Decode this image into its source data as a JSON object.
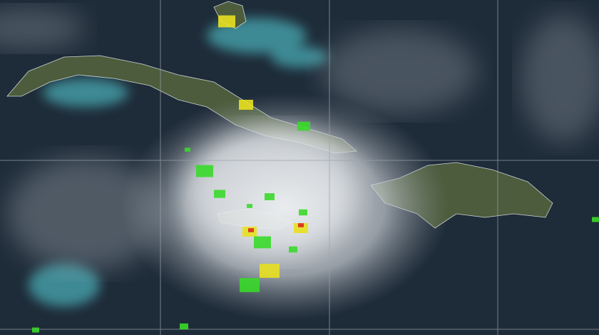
{
  "colors": {
    "ocean": "#1e2b38",
    "shallow_water": "#3d8a94",
    "land": "#4c5c3c",
    "cloud": "#e6e9ec",
    "grid": "#9aa3ad",
    "lightning_low": "#39d92a",
    "lightning_mid": "#e8e020",
    "lightning_high": "#d8281e"
  }
}
